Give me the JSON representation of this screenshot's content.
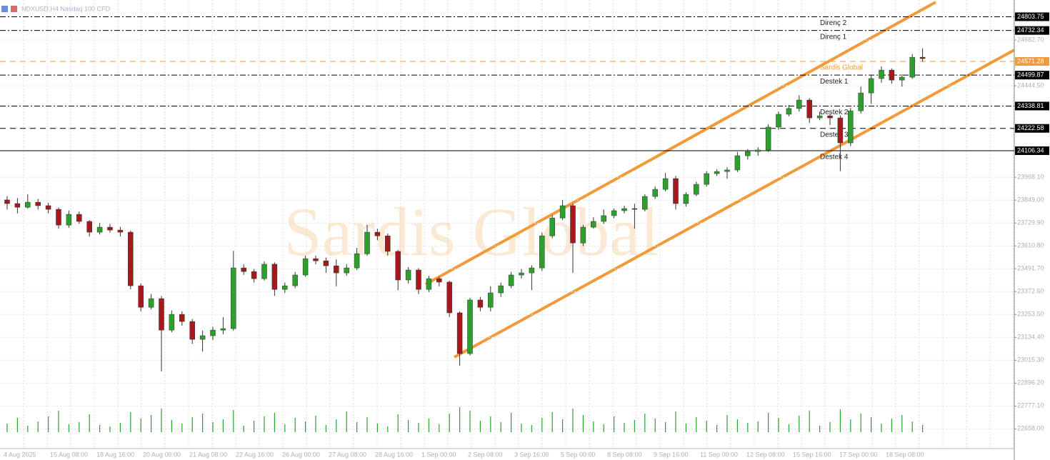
{
  "chart_data": {
    "type": "candlestick",
    "title": "NDXUSD,H4 Nasdaq 100 CFD",
    "watermark": "Sardis Global",
    "ylim": [
      22585,
      24891
    ],
    "yticks": [
      {
        "value": 22658,
        "label": "22658.00"
      },
      {
        "value": 22777.1,
        "label": "22777.10"
      },
      {
        "value": 22896.2,
        "label": "22896.20"
      },
      {
        "value": 23015.3,
        "label": "23015.30"
      },
      {
        "value": 23134.4,
        "label": "23134.40"
      },
      {
        "value": 23253.5,
        "label": "23253.50"
      },
      {
        "value": 23372.6,
        "label": "23372.60"
      },
      {
        "value": 23491.7,
        "label": "23491.70"
      },
      {
        "value": 23610.8,
        "label": "23610.80"
      },
      {
        "value": 23729.9,
        "label": "23729.90"
      },
      {
        "value": 23849,
        "label": "23849.00"
      },
      {
        "value": 23968.1,
        "label": "23968.10"
      },
      {
        "value": 24444.5,
        "label": "24444.50"
      },
      {
        "value": 24682.7,
        "label": "24682.70"
      }
    ],
    "grid": true,
    "up_color": "#2ca02c",
    "down_color": "#a3191c",
    "volume_color": "#2ca02c",
    "candles": [
      [
        23850,
        23870,
        23800,
        23831
      ],
      [
        23831,
        23860,
        23780,
        23812
      ],
      [
        23812,
        23880,
        23805,
        23838
      ],
      [
        23838,
        23855,
        23800,
        23820
      ],
      [
        23820,
        23835,
        23780,
        23801
      ],
      [
        23801,
        23810,
        23700,
        23719
      ],
      [
        23719,
        23795,
        23705,
        23775
      ],
      [
        23775,
        23790,
        23725,
        23738
      ],
      [
        23738,
        23745,
        23660,
        23682
      ],
      [
        23682,
        23730,
        23670,
        23708
      ],
      [
        23708,
        23725,
        23680,
        23693
      ],
      [
        23693,
        23710,
        23660,
        23682
      ],
      [
        23682,
        23690,
        23385,
        23403
      ],
      [
        23403,
        23415,
        23270,
        23291
      ],
      [
        23291,
        23360,
        23280,
        23336
      ],
      [
        23336,
        23350,
        22957,
        23172
      ],
      [
        23172,
        23275,
        23160,
        23254
      ],
      [
        23254,
        23270,
        23195,
        23217
      ],
      [
        23217,
        23230,
        23100,
        23124
      ],
      [
        23124,
        23170,
        23060,
        23143
      ],
      [
        23143,
        23190,
        23120,
        23172
      ],
      [
        23172,
        23240,
        23150,
        23180
      ],
      [
        23180,
        23585,
        23170,
        23496
      ],
      [
        23496,
        23515,
        23460,
        23477
      ],
      [
        23477,
        23490,
        23420,
        23440
      ],
      [
        23440,
        23530,
        23430,
        23515
      ],
      [
        23515,
        23525,
        23350,
        23384
      ],
      [
        23384,
        23420,
        23365,
        23403
      ],
      [
        23403,
        23475,
        23390,
        23459
      ],
      [
        23459,
        23560,
        23450,
        23544
      ],
      [
        23544,
        23560,
        23515,
        23533
      ],
      [
        23533,
        23550,
        23470,
        23507
      ],
      [
        23507,
        23540,
        23400,
        23470
      ],
      [
        23470,
        23515,
        23455,
        23496
      ],
      [
        23496,
        23600,
        23485,
        23570
      ],
      [
        23570,
        23720,
        23560,
        23682
      ],
      [
        23682,
        23700,
        23640,
        23663
      ],
      [
        23663,
        23675,
        23560,
        23582
      ],
      [
        23582,
        23590,
        23380,
        23433
      ],
      [
        23433,
        23500,
        23415,
        23485
      ],
      [
        23485,
        23495,
        23360,
        23384
      ],
      [
        23384,
        23455,
        23370,
        23440
      ],
      [
        23440,
        23450,
        23400,
        23422
      ],
      [
        23422,
        23430,
        23240,
        23262
      ],
      [
        23262,
        23270,
        22986,
        23050
      ],
      [
        23050,
        23340,
        23040,
        23329
      ],
      [
        23329,
        23345,
        23270,
        23291
      ],
      [
        23291,
        23400,
        23270,
        23366
      ],
      [
        23366,
        23420,
        23345,
        23403
      ],
      [
        23403,
        23475,
        23390,
        23459
      ],
      [
        23459,
        23490,
        23440,
        23470
      ],
      [
        23470,
        23510,
        23380,
        23496
      ],
      [
        23496,
        23680,
        23480,
        23663
      ],
      [
        23663,
        23770,
        23650,
        23756
      ],
      [
        23756,
        23850,
        23745,
        23820
      ],
      [
        23820,
        23830,
        23470,
        23626
      ],
      [
        23626,
        23720,
        23610,
        23708
      ],
      [
        23708,
        23760,
        23700,
        23738
      ],
      [
        23738,
        23800,
        23725,
        23768
      ],
      [
        23768,
        23805,
        23755,
        23794
      ],
      [
        23794,
        23820,
        23780,
        23805
      ],
      [
        23805,
        23830,
        23700,
        23801
      ],
      [
        23801,
        23880,
        23790,
        23868
      ],
      [
        23868,
        23920,
        23855,
        23905
      ],
      [
        23905,
        23990,
        23895,
        23961
      ],
      [
        23961,
        23975,
        23800,
        23831
      ],
      [
        23831,
        23890,
        23815,
        23879
      ],
      [
        23879,
        23945,
        23870,
        23931
      ],
      [
        23931,
        24000,
        23920,
        23987
      ],
      [
        23987,
        24010,
        23975,
        23998
      ],
      [
        23998,
        24020,
        23960,
        24006
      ],
      [
        24006,
        24100,
        23995,
        24080
      ],
      [
        24080,
        24115,
        24060,
        24102
      ],
      [
        24102,
        24125,
        24080,
        24110
      ],
      [
        24110,
        24245,
        24100,
        24229
      ],
      [
        24229,
        24310,
        24215,
        24296
      ],
      [
        24296,
        24345,
        24285,
        24326
      ],
      [
        24326,
        24395,
        24310,
        24370
      ],
      [
        24370,
        24380,
        24250,
        24277
      ],
      [
        24277,
        24310,
        24265,
        24288
      ],
      [
        24288,
        24300,
        24240,
        24277
      ],
      [
        24277,
        24290,
        24000,
        24147
      ],
      [
        24147,
        24330,
        24130,
        24314
      ],
      [
        24314,
        24440,
        24300,
        24407
      ],
      [
        24407,
        24500,
        24350,
        24482
      ],
      [
        24482,
        24545,
        24460,
        24526
      ],
      [
        24526,
        24535,
        24455,
        24474
      ],
      [
        24474,
        24505,
        24440,
        24489
      ],
      [
        24489,
        24610,
        24480,
        24593
      ],
      [
        24593,
        24640,
        24570,
        24586
      ]
    ],
    "volume": [
      12,
      20,
      9,
      15,
      22,
      30,
      11,
      14,
      25,
      10,
      8,
      13,
      28,
      19,
      24,
      33,
      17,
      12,
      21,
      26,
      14,
      18,
      31,
      9,
      16,
      22,
      27,
      11,
      20,
      15,
      23,
      10,
      18,
      29,
      14,
      21,
      12,
      8,
      25,
      17,
      13,
      19,
      11,
      26,
      35,
      30,
      16,
      22,
      14,
      27,
      12,
      10,
      20,
      28,
      18,
      33,
      24,
      15,
      11,
      22,
      13,
      17,
      26,
      19,
      14,
      29,
      12,
      21,
      16,
      10,
      24,
      18,
      13,
      15,
      27,
      20,
      11,
      23,
      30,
      9,
      14,
      32,
      18,
      26,
      21,
      12,
      19,
      24,
      15,
      10
    ],
    "time_labels": [
      "4 Aug 2025",
      "15 Aug 08:00",
      "18 Aug 16:00",
      "20 Aug 00:00",
      "21 Aug 08:00",
      "22 Aug 16:00",
      "26 Aug 00:00",
      "27 Aug 08:00",
      "28 Aug 16:00",
      "1 Sep 00:00",
      "2 Sep 08:00",
      "3 Sep 16:00",
      "5 Sep 00:00",
      "8 Sep 08:00",
      "9 Sep 16:00",
      "11 Sep 00:00",
      "12 Sep 08:00",
      "15 Sep 16:00",
      "17 Sep 00:00",
      "18 Sep 08:00"
    ],
    "levels": [
      {
        "name": "Direnç 2",
        "value": 24803.75,
        "color": "#000000",
        "style": "dashdot"
      },
      {
        "name": "Direnç 1",
        "value": 24732.34,
        "color": "#000000",
        "style": "dashdot"
      },
      {
        "name": "Sardis Global",
        "value": 24571.28,
        "color": "#f29a3a",
        "style": "dashed"
      },
      {
        "name": "Destek 1",
        "value": 24499.87,
        "color": "#000000",
        "style": "dashdot"
      },
      {
        "name": "Destek 2",
        "value": 24338.81,
        "color": "#000000",
        "style": "dashdot"
      },
      {
        "name": "Destek 3",
        "value": 24222.58,
        "color": "#000000",
        "style": "dashed"
      },
      {
        "name": "Destek 4",
        "value": 24106.34,
        "color": "#000000",
        "style": "solid"
      }
    ]
  }
}
